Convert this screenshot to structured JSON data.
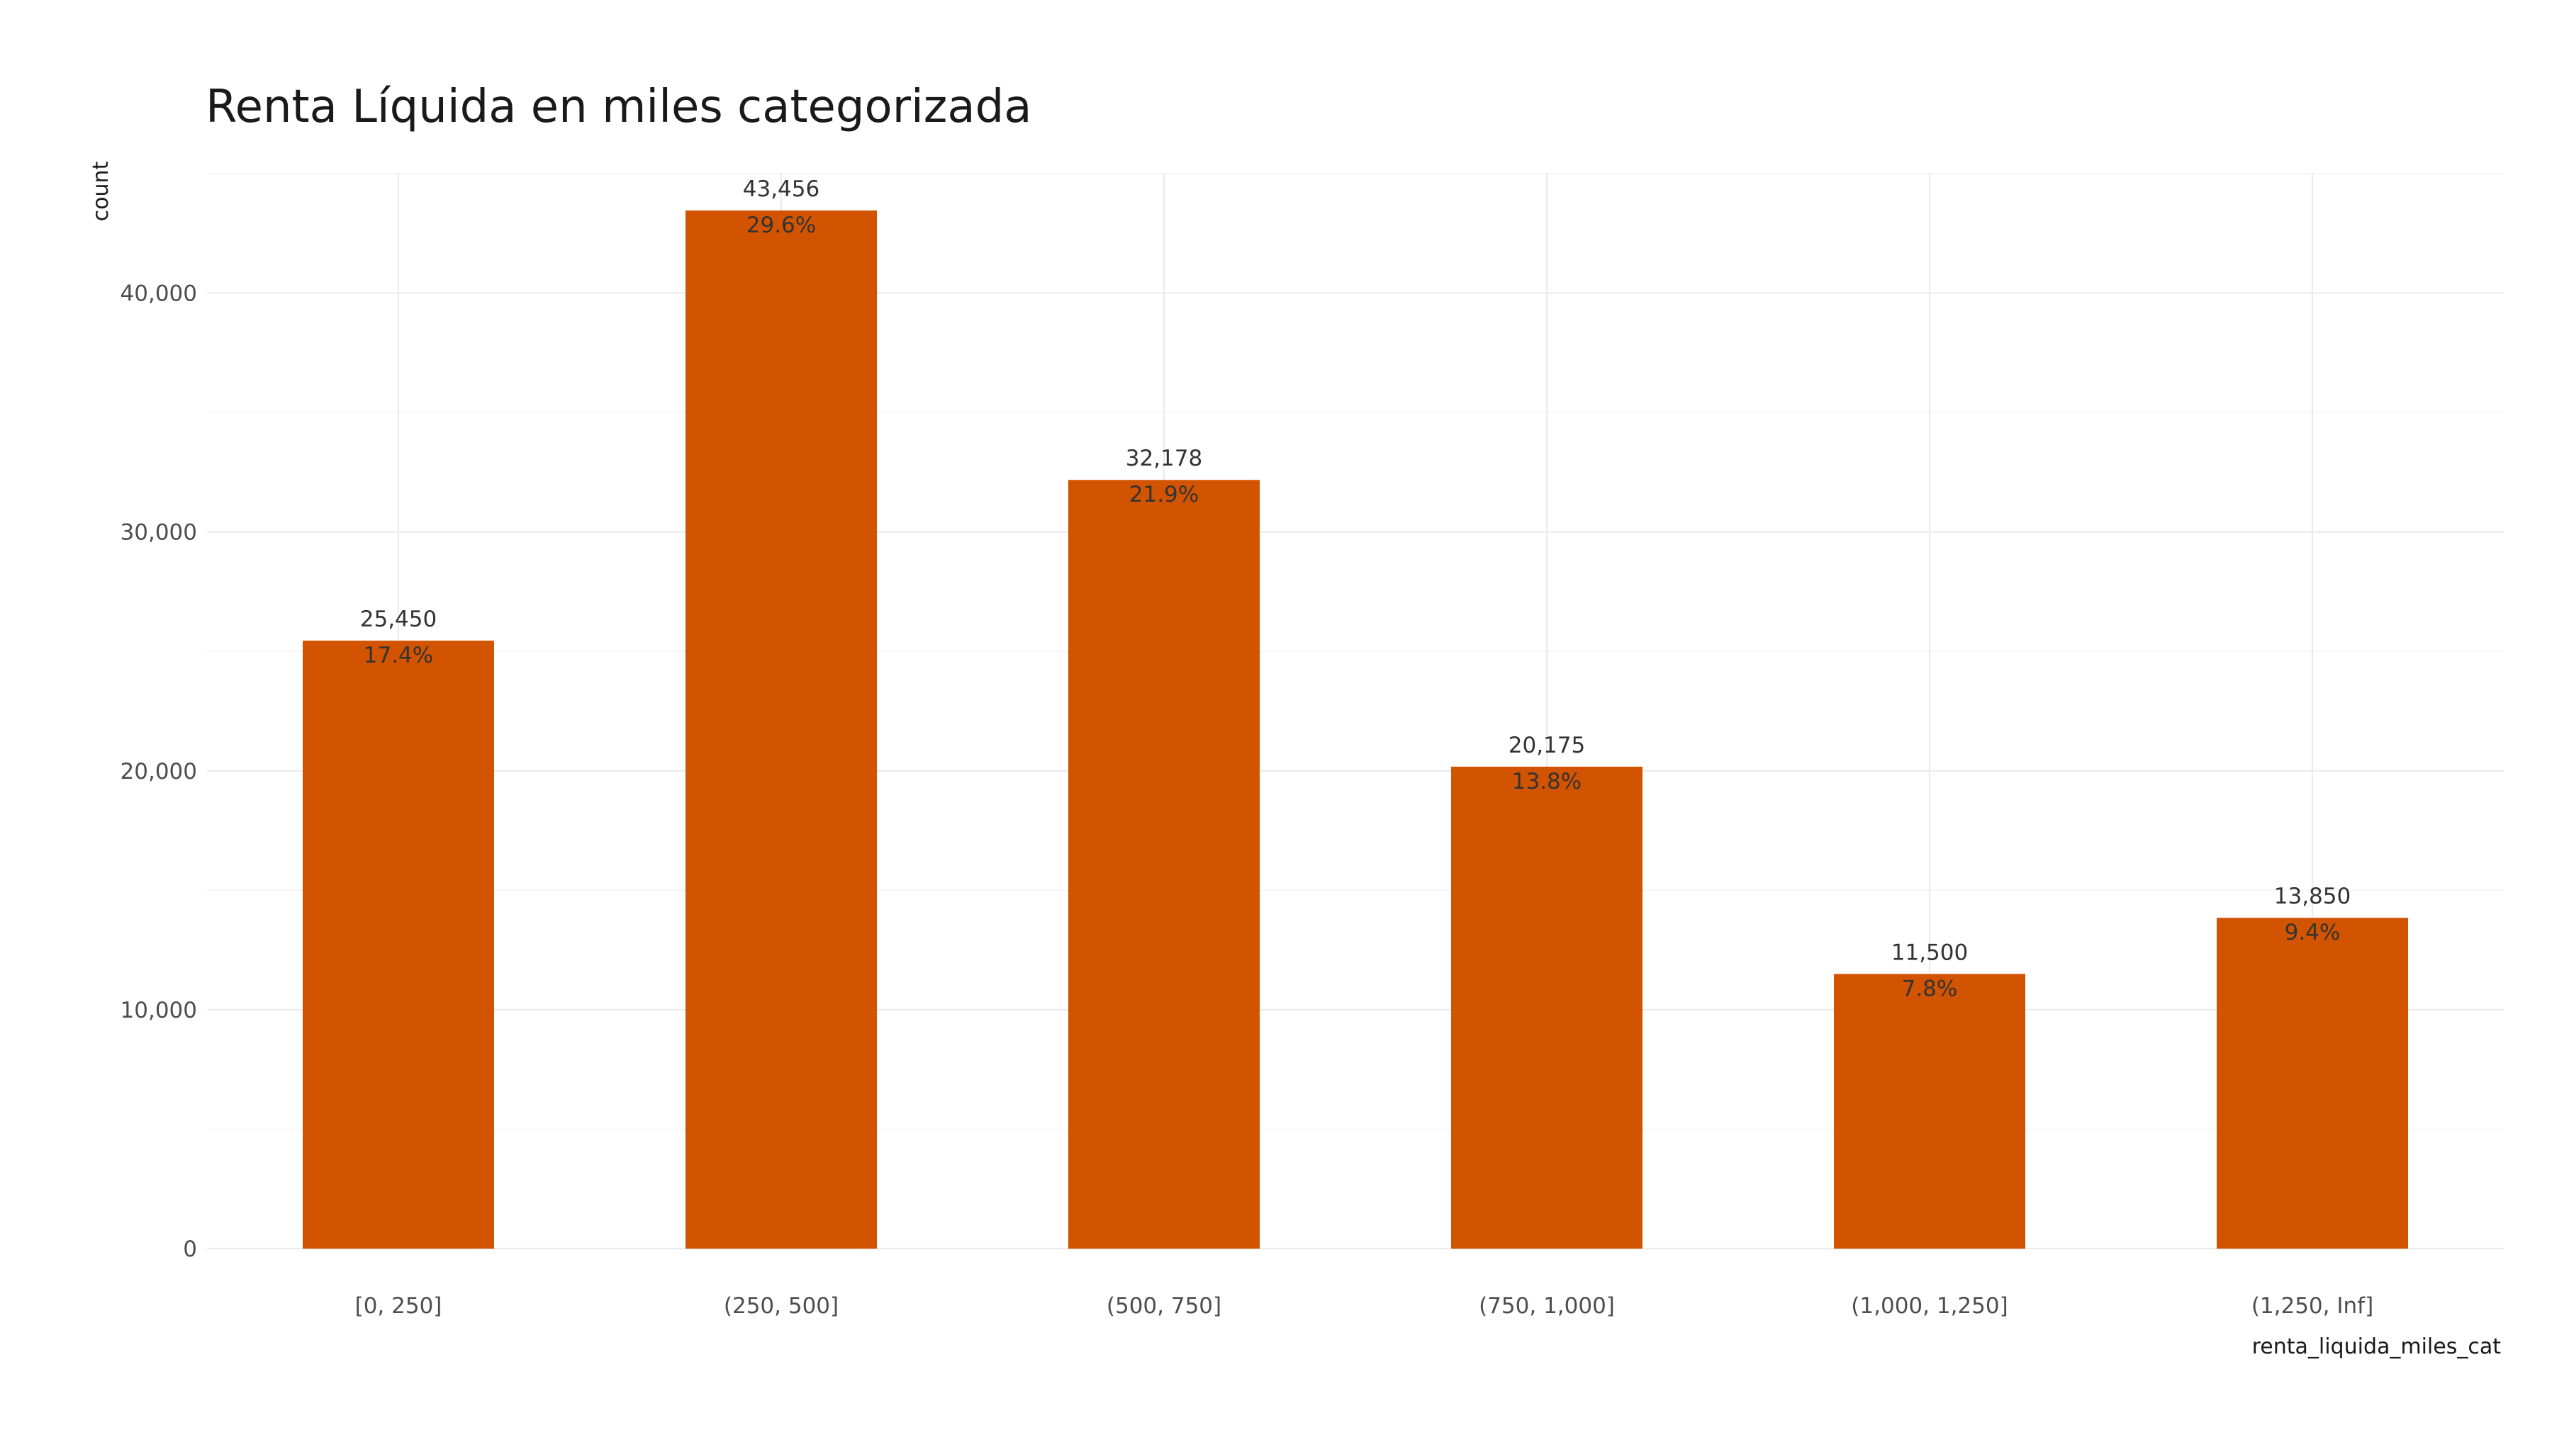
{
  "chart_data": {
    "type": "bar",
    "title": "Renta Líquida en miles categorizada",
    "xlabel": "renta_liquida_miles_cat",
    "ylabel": "count",
    "categories": [
      "[0, 250]",
      "(250, 500]",
      "(500, 750]",
      "(750, 1,000]",
      "(1,000, 1,250]",
      "(1,250, Inf]"
    ],
    "values": [
      25450,
      43456,
      32178,
      20175,
      11500,
      13850
    ],
    "count_labels": [
      "25,450",
      "43,456",
      "32,178",
      "20,175",
      "11,500",
      "13,850"
    ],
    "percent_labels": [
      "17.4%",
      "29.6%",
      "21.9%",
      "13.8%",
      "7.8%",
      "9.4%"
    ],
    "yticks": [
      0,
      10000,
      20000,
      30000,
      40000
    ],
    "ytick_labels": [
      "0",
      "10,000",
      "20,000",
      "30,000",
      "40,000"
    ],
    "ylim": [
      0,
      45000
    ],
    "grid": true,
    "bar_color": "#D35400"
  }
}
